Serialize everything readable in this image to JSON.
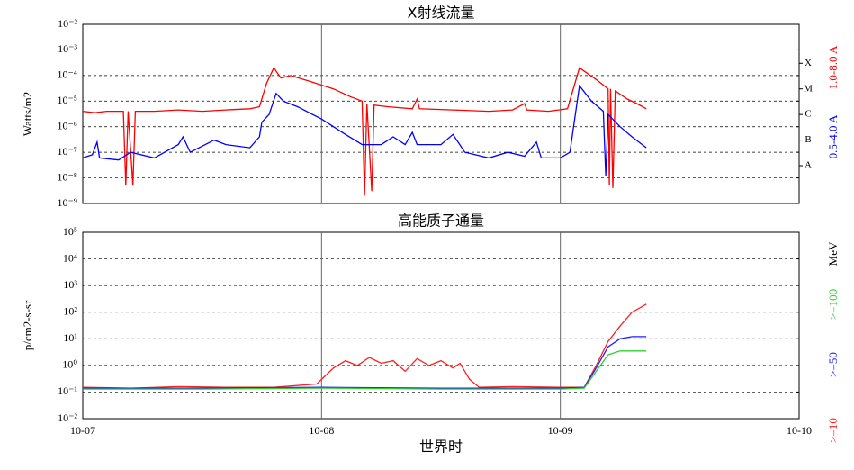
{
  "chart_data": [
    {
      "type": "line",
      "title": "X射线流量",
      "y_label": "Watts/m2",
      "log_y": true,
      "xlim": [
        7,
        10
      ],
      "xticks": [
        {
          "value": 7,
          "label": "10-07"
        },
        {
          "value": 8,
          "label": "10-08"
        },
        {
          "value": 9,
          "label": "10-09"
        },
        {
          "value": 10,
          "label": "10-10"
        }
      ],
      "ylim": [
        1e-09,
        0.01
      ],
      "yticks": [
        {
          "value": 1e-09,
          "label": "10⁻⁹"
        },
        {
          "value": 1e-08,
          "label": "10⁻⁸"
        },
        {
          "value": 1e-07,
          "label": "10⁻⁷"
        },
        {
          "value": 1e-06,
          "label": "10⁻⁶"
        },
        {
          "value": 1e-05,
          "label": "10⁻⁵"
        },
        {
          "value": 0.0001,
          "label": "10⁻⁴"
        },
        {
          "value": 0.001,
          "label": "10⁻³"
        },
        {
          "value": 0.01,
          "label": "10⁻²"
        }
      ],
      "grid": true,
      "class_labels": {
        "labels": [
          "A",
          "B",
          "C",
          "M",
          "X"
        ],
        "values": [
          3e-08,
          3e-07,
          3e-06,
          3e-05,
          0.0003
        ]
      },
      "series": [
        {
          "name": "1.0-8.0 A",
          "color": "#ff0000",
          "x": [
            7.0,
            7.05,
            7.1,
            7.17,
            7.18,
            7.19,
            7.21,
            7.22,
            7.3,
            7.4,
            7.5,
            7.6,
            7.7,
            7.74,
            7.77,
            7.8,
            7.83,
            7.87,
            7.95,
            8.05,
            8.12,
            8.17,
            8.18,
            8.19,
            8.21,
            8.22,
            8.28,
            8.38,
            8.4,
            8.41,
            8.55,
            8.7,
            8.8,
            8.85,
            8.86,
            8.95,
            9.03,
            9.08,
            9.15,
            9.2,
            9.205,
            9.21,
            9.22,
            9.23,
            9.28,
            9.32,
            9.36
          ],
          "values": [
            4e-06,
            3.5e-06,
            4e-06,
            4e-06,
            5e-09,
            4e-06,
            5e-09,
            4e-06,
            4e-06,
            4.5e-06,
            4e-06,
            4.5e-06,
            5e-06,
            6e-06,
            5e-05,
            0.0002,
            8e-05,
            0.0001,
            6e-05,
            3e-05,
            1.5e-05,
            1e-05,
            2e-09,
            8e-06,
            3e-09,
            7e-06,
            6e-06,
            5e-06,
            1.2e-05,
            5e-06,
            4.5e-06,
            4e-06,
            4.5e-06,
            8e-06,
            4.5e-06,
            4e-06,
            5e-06,
            0.0002,
            7e-05,
            3e-05,
            5e-09,
            3e-05,
            4e-09,
            2.5e-05,
            1.2e-05,
            8e-06,
            5e-06
          ]
        },
        {
          "name": "0.5-4.0 A",
          "color": "#0000ff",
          "x": [
            7.0,
            7.04,
            7.06,
            7.07,
            7.15,
            7.2,
            7.3,
            7.4,
            7.42,
            7.45,
            7.55,
            7.6,
            7.7,
            7.74,
            7.75,
            7.78,
            7.81,
            7.84,
            7.9,
            8.0,
            8.1,
            8.17,
            8.25,
            8.3,
            8.35,
            8.38,
            8.4,
            8.5,
            8.55,
            8.6,
            8.7,
            8.78,
            8.85,
            8.9,
            8.92,
            9.0,
            9.04,
            9.08,
            9.13,
            9.18,
            9.19,
            9.2,
            9.25,
            9.3,
            9.36
          ],
          "values": [
            6e-08,
            8e-08,
            2.5e-07,
            6e-08,
            5e-08,
            1e-07,
            6e-08,
            2e-07,
            4e-07,
            1e-07,
            3e-07,
            2e-07,
            1.5e-07,
            4e-07,
            1.5e-06,
            3e-06,
            2e-05,
            1e-05,
            6e-06,
            2e-06,
            5e-07,
            2e-07,
            2e-07,
            4e-07,
            2e-07,
            6e-07,
            2e-07,
            2e-07,
            5e-07,
            1e-07,
            6e-08,
            1e-07,
            7e-08,
            2.5e-07,
            6e-08,
            6e-08,
            1e-07,
            4e-05,
            1e-05,
            4e-06,
            1.2e-08,
            3e-06,
            1e-06,
            4e-07,
            1.5e-07
          ]
        }
      ]
    },
    {
      "type": "line",
      "title": "高能质子通量",
      "y_label": "p/cm2-s-sr",
      "x_label": "世界时",
      "unit_label": "MeV",
      "log_y": true,
      "xlim": [
        7,
        10
      ],
      "xticks": [
        {
          "value": 7,
          "label": "10-07"
        },
        {
          "value": 8,
          "label": "10-08"
        },
        {
          "value": 9,
          "label": "10-09"
        },
        {
          "value": 10,
          "label": "10-10"
        }
      ],
      "ylim": [
        0.01,
        100000.0
      ],
      "yticks": [
        {
          "value": 0.01,
          "label": "10⁻²"
        },
        {
          "value": 0.1,
          "label": "10⁻¹"
        },
        {
          "value": 1,
          "label": "10⁰"
        },
        {
          "value": 10,
          "label": "10¹"
        },
        {
          "value": 100,
          "label": "10²"
        },
        {
          "value": 1000,
          "label": "10³"
        },
        {
          "value": 10000,
          "label": "10⁴"
        },
        {
          "value": 100000,
          "label": "10⁵"
        }
      ],
      "grid": true,
      "series": [
        {
          "name": ">=10",
          "color": "#ff2020",
          "x": [
            7.0,
            7.2,
            7.4,
            7.6,
            7.8,
            7.98,
            8.05,
            8.1,
            8.15,
            8.2,
            8.25,
            8.3,
            8.35,
            8.4,
            8.45,
            8.5,
            8.55,
            8.58,
            8.62,
            8.66,
            8.8,
            9.0,
            9.1,
            9.15,
            9.2,
            9.25,
            9.3,
            9.36
          ],
          "values": [
            0.15,
            0.14,
            0.16,
            0.15,
            0.15,
            0.2,
            0.8,
            1.5,
            1.0,
            2,
            1.2,
            1.5,
            0.6,
            1.8,
            1.0,
            1.5,
            0.8,
            1.2,
            0.3,
            0.15,
            0.16,
            0.15,
            0.15,
            1,
            8,
            30,
            100,
            200
          ]
        },
        {
          "name": ">=50",
          "color": "#2020ff",
          "x": [
            7.0,
            7.5,
            8.0,
            8.5,
            9.0,
            9.1,
            9.15,
            9.2,
            9.25,
            9.3,
            9.36
          ],
          "values": [
            0.14,
            0.14,
            0.15,
            0.14,
            0.14,
            0.15,
            0.8,
            5,
            10,
            12,
            12
          ]
        },
        {
          "name": ">=100",
          "color": "#30d030",
          "x": [
            7.0,
            7.5,
            8.0,
            8.5,
            9.0,
            9.1,
            9.15,
            9.2,
            9.25,
            9.36
          ],
          "values": [
            0.13,
            0.13,
            0.14,
            0.13,
            0.13,
            0.14,
            0.6,
            2.5,
            3.5,
            3.5
          ]
        }
      ]
    }
  ]
}
